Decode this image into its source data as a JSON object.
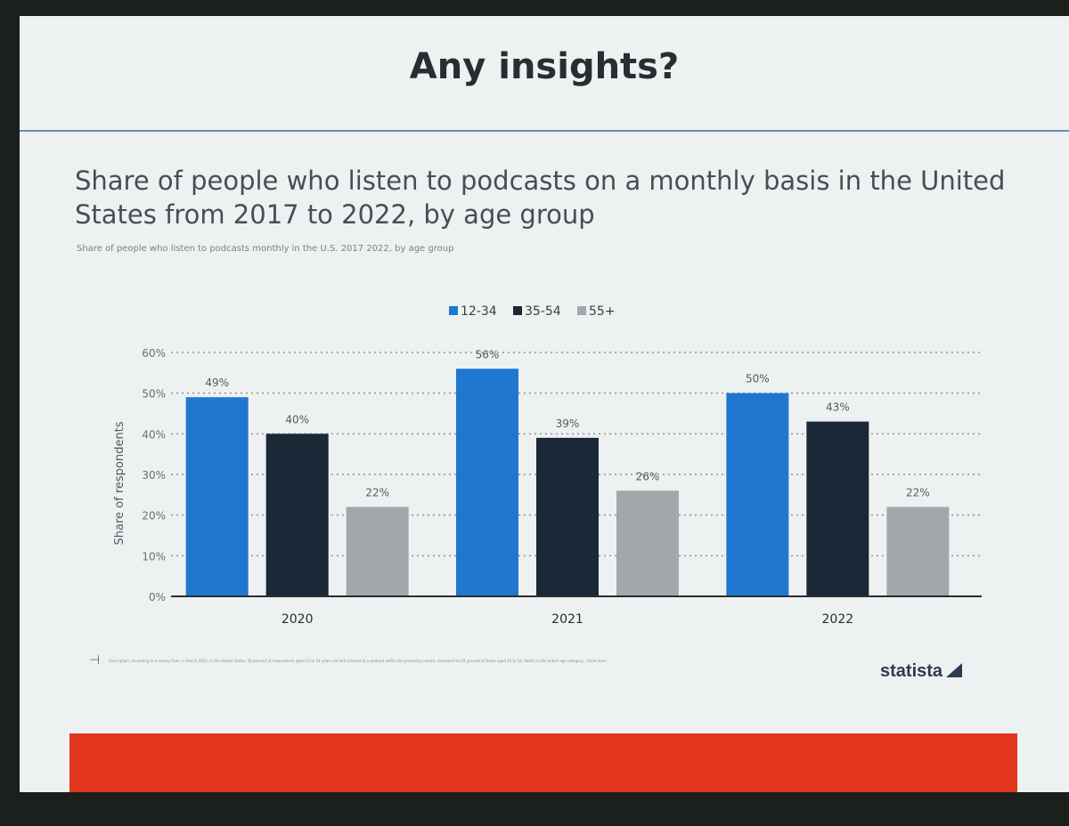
{
  "slide": {
    "title": "Any insights?",
    "footnote": "Description: According to a survey from, in March 2022, in the United States, 50 percent of respondents aged 12 to 34 years old had listened to a podcast within the preceding month, compared to 43 percent of those aged 35 to 54. Adults in the oldest age category... Read more",
    "logo": "statista"
  },
  "chart_data": {
    "type": "bar",
    "title": "Share of people who listen to podcasts on a monthly basis in the United States from 2017 to 2022, by age group",
    "subtitle": "Share of people who listen to podcasts monthly in the U.S. 2017 2022, by age group",
    "ylabel": "Share of respondents",
    "xlabel": "",
    "categories": [
      "2020",
      "2021",
      "2022"
    ],
    "series": [
      {
        "name": "12-34",
        "values": [
          49,
          56,
          50
        ],
        "color": "#1f77d0"
      },
      {
        "name": "35-54",
        "values": [
          40,
          39,
          43
        ],
        "color": "#1b2838"
      },
      {
        "name": "55+",
        "values": [
          22,
          26,
          22
        ],
        "color": "#a4a7aa"
      }
    ],
    "value_labels": [
      "49%",
      "40%",
      "22%",
      "56%",
      "39%",
      "26%",
      "50%",
      "43%",
      "22%"
    ],
    "ylim": [
      0,
      60
    ],
    "yticks": [
      "0%",
      "10%",
      "20%",
      "30%",
      "40%",
      "50%",
      "60%"
    ],
    "grid": true,
    "legend_position": "top"
  }
}
